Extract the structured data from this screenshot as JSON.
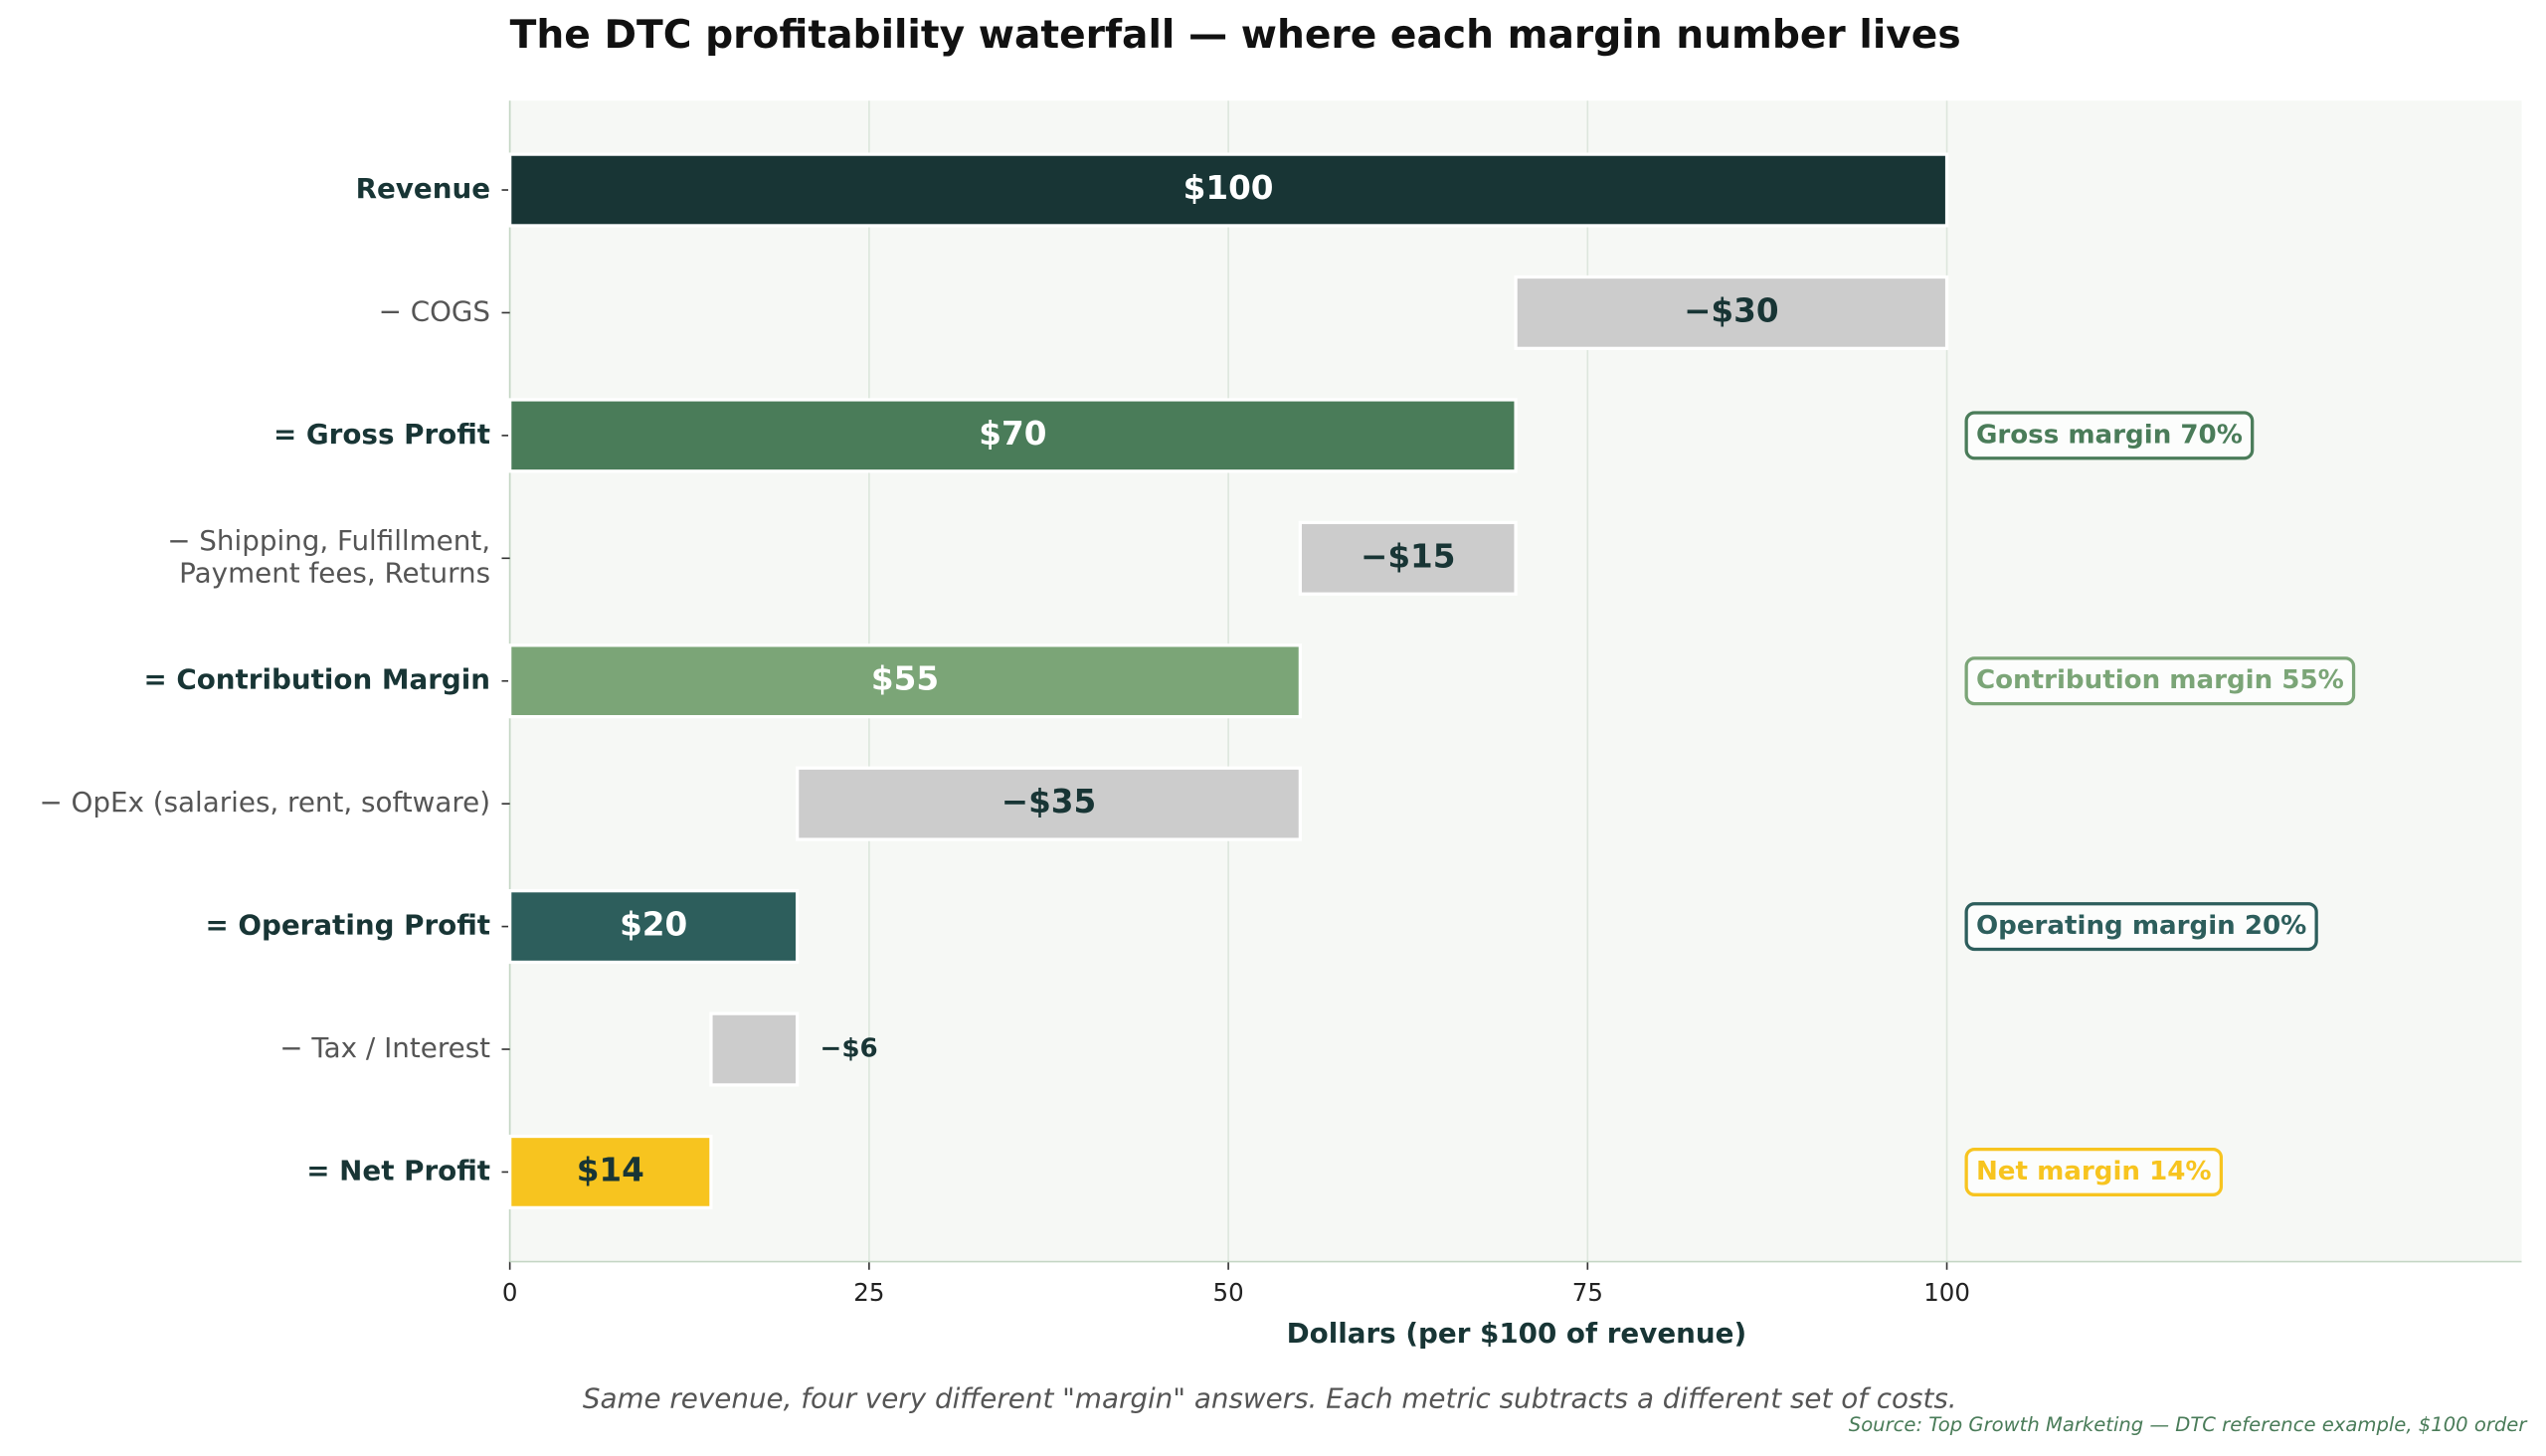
{
  "chart_data": {
    "type": "waterfall",
    "title": "The DTC profitability waterfall — where each margin number lives",
    "x_label": "Dollars (per $100 of revenue)",
    "note": "Same revenue, four very different \"margin\" answers. Each metric subtracts a different set of costs.",
    "source": "Source: Top Growth Marketing — DTC reference example, $100 order",
    "categories": [
      "Revenue",
      "− COGS",
      "= Gross Profit",
      "− Shipping, Fulfillment,\nPayment fees, Returns",
      "= Contribution Margin",
      "− OpEx (salaries, rent, software)",
      "= Operating Profit",
      "− Tax / Interest",
      "= Net Profit"
    ],
    "values": [
      100,
      -30,
      70,
      -15,
      55,
      -35,
      20,
      -6,
      14
    ],
    "value_labels": [
      "$100",
      "−$30",
      "$70",
      "−$15",
      "$55",
      "−$35",
      "$20",
      "−$6",
      "$14"
    ],
    "colors": [
      "#183535",
      "#cccccc",
      "#4a7c59",
      "#cccccc",
      "#7ba577",
      "#cccccc",
      "#2d5e5c",
      "#cccccc",
      "#f7c41f"
    ],
    "value_label_colors": [
      "#ffffff",
      "#183535",
      "#ffffff",
      "#183535",
      "#ffffff",
      "#183535",
      "#ffffff",
      "#183535",
      "#183535"
    ],
    "margin_labels": [
      null,
      null,
      "Gross margin 70%",
      null,
      "Contribution margin 55%",
      null,
      "Operating margin 20%",
      null,
      "Net margin 14%"
    ],
    "xlim": [
      0,
      140
    ],
    "xticks": [
      0,
      25,
      50,
      75,
      100
    ],
    "grid": true
  }
}
